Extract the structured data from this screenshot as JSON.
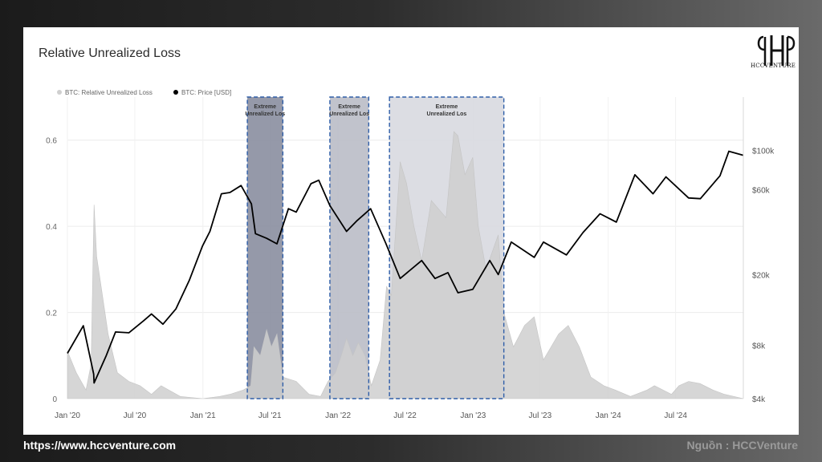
{
  "footer": {
    "url": "https://www.hccventure.com",
    "source": "Nguồn : HCCVenture"
  },
  "brand": {
    "logo_text": "HCCVENTURE"
  },
  "chart_data": {
    "type": "area",
    "title": "Relative Unrealized Loss",
    "legend": [
      {
        "name": "BTC: Relative Unrealized Loss",
        "color": "#cfcfcf"
      },
      {
        "name": "BTC: Price [USD]",
        "color": "#000000"
      }
    ],
    "legend_position": "top-left",
    "x_ticks": [
      "Jan '20",
      "Jul '20",
      "Jan '21",
      "Jul '21",
      "Jan '22",
      "Jul '22",
      "Jan '23",
      "Jul '23",
      "Jan '24",
      "Jul '24"
    ],
    "x_range": [
      "2020-01-01",
      "2024-12-31"
    ],
    "y_left": {
      "ticks": [
        0,
        0.2,
        0.4,
        0.6
      ],
      "range": [
        0,
        0.7
      ]
    },
    "y_right": {
      "ticks": [
        "$4k",
        "$8k",
        "$20k",
        "$60k",
        "$100k"
      ],
      "tick_values": [
        4000,
        8000,
        20000,
        60000,
        100000
      ],
      "scale": "log",
      "range": [
        4000,
        200000
      ]
    },
    "grid": true,
    "highlight_zones": [
      {
        "label": "Extreme Unrealized Los",
        "start": "2021-05-01",
        "end": "2021-08-05",
        "fill": "#8a8ea0"
      },
      {
        "label": "Extreme Unrealized Los",
        "start": "2021-12-10",
        "end": "2022-03-25",
        "fill": "#babcc6"
      },
      {
        "label": "Extreme Unrealized Los",
        "start": "2022-05-20",
        "end": "2023-03-25",
        "fill": "#d8d9e0"
      }
    ],
    "series": [
      {
        "name": "BTC: Relative Unrealized Loss",
        "kind": "area",
        "color": "#cfcfcf",
        "points": [
          [
            "2020-01-01",
            0.11
          ],
          [
            "2020-01-25",
            0.06
          ],
          [
            "2020-02-20",
            0.02
          ],
          [
            "2020-03-05",
            0.08
          ],
          [
            "2020-03-13",
            0.45
          ],
          [
            "2020-03-20",
            0.33
          ],
          [
            "2020-04-01",
            0.26
          ],
          [
            "2020-04-20",
            0.15
          ],
          [
            "2020-05-15",
            0.06
          ],
          [
            "2020-06-15",
            0.04
          ],
          [
            "2020-07-15",
            0.03
          ],
          [
            "2020-08-15",
            0.01
          ],
          [
            "2020-09-10",
            0.03
          ],
          [
            "2020-10-01",
            0.02
          ],
          [
            "2020-11-01",
            0.005
          ],
          [
            "2021-01-01",
            0.0
          ],
          [
            "2021-02-15",
            0.005
          ],
          [
            "2021-03-15",
            0.01
          ],
          [
            "2021-04-20",
            0.02
          ],
          [
            "2021-05-10",
            0.03
          ],
          [
            "2021-05-19",
            0.12
          ],
          [
            "2021-06-05",
            0.1
          ],
          [
            "2021-06-22",
            0.16
          ],
          [
            "2021-07-05",
            0.12
          ],
          [
            "2021-07-20",
            0.15
          ],
          [
            "2021-08-05",
            0.05
          ],
          [
            "2021-09-10",
            0.04
          ],
          [
            "2021-10-15",
            0.01
          ],
          [
            "2021-11-15",
            0.005
          ],
          [
            "2021-12-05",
            0.04
          ],
          [
            "2021-12-25",
            0.06
          ],
          [
            "2022-01-10",
            0.1
          ],
          [
            "2022-01-24",
            0.14
          ],
          [
            "2022-02-10",
            0.1
          ],
          [
            "2022-02-25",
            0.13
          ],
          [
            "2022-03-15",
            0.1
          ],
          [
            "2022-04-01",
            0.03
          ],
          [
            "2022-04-25",
            0.09
          ],
          [
            "2022-05-12",
            0.26
          ],
          [
            "2022-05-25",
            0.24
          ],
          [
            "2022-06-18",
            0.55
          ],
          [
            "2022-07-05",
            0.5
          ],
          [
            "2022-07-25",
            0.4
          ],
          [
            "2022-08-15",
            0.32
          ],
          [
            "2022-09-10",
            0.46
          ],
          [
            "2022-09-30",
            0.44
          ],
          [
            "2022-10-20",
            0.42
          ],
          [
            "2022-11-10",
            0.62
          ],
          [
            "2022-11-21",
            0.61
          ],
          [
            "2022-12-10",
            0.52
          ],
          [
            "2022-12-31",
            0.56
          ],
          [
            "2023-01-15",
            0.4
          ],
          [
            "2023-02-05",
            0.3
          ],
          [
            "2023-03-10",
            0.38
          ],
          [
            "2023-03-25",
            0.2
          ],
          [
            "2023-04-20",
            0.12
          ],
          [
            "2023-05-20",
            0.17
          ],
          [
            "2023-06-15",
            0.19
          ],
          [
            "2023-07-10",
            0.09
          ],
          [
            "2023-08-20",
            0.15
          ],
          [
            "2023-09-15",
            0.17
          ],
          [
            "2023-10-15",
            0.12
          ],
          [
            "2023-11-15",
            0.05
          ],
          [
            "2023-12-20",
            0.03
          ],
          [
            "2024-01-20",
            0.02
          ],
          [
            "2024-03-01",
            0.005
          ],
          [
            "2024-04-15",
            0.02
          ],
          [
            "2024-05-05",
            0.03
          ],
          [
            "2024-06-20",
            0.01
          ],
          [
            "2024-07-10",
            0.03
          ],
          [
            "2024-08-05",
            0.04
          ],
          [
            "2024-09-05",
            0.035
          ],
          [
            "2024-10-10",
            0.02
          ],
          [
            "2024-11-10",
            0.01
          ],
          [
            "2024-12-31",
            0.0
          ]
        ]
      },
      {
        "name": "BTC: Price [USD]",
        "kind": "line",
        "axis": "right",
        "color": "#000000",
        "points": [
          [
            "2020-01-01",
            7200
          ],
          [
            "2020-02-13",
            10300
          ],
          [
            "2020-03-12",
            5500
          ],
          [
            "2020-03-13",
            4900
          ],
          [
            "2020-04-15",
            7000
          ],
          [
            "2020-05-10",
            9500
          ],
          [
            "2020-06-15",
            9400
          ],
          [
            "2020-07-25",
            11000
          ],
          [
            "2020-08-15",
            12000
          ],
          [
            "2020-09-15",
            10500
          ],
          [
            "2020-10-20",
            12800
          ],
          [
            "2020-11-25",
            18500
          ],
          [
            "2020-12-31",
            29000
          ],
          [
            "2021-01-20",
            35000
          ],
          [
            "2021-02-20",
            57000
          ],
          [
            "2021-03-15",
            58000
          ],
          [
            "2021-04-14",
            63500
          ],
          [
            "2021-05-12",
            50000
          ],
          [
            "2021-05-23",
            34000
          ],
          [
            "2021-06-22",
            32000
          ],
          [
            "2021-07-20",
            29800
          ],
          [
            "2021-08-20",
            47000
          ],
          [
            "2021-09-10",
            45000
          ],
          [
            "2021-10-20",
            65000
          ],
          [
            "2021-11-10",
            68000
          ],
          [
            "2021-12-10",
            49000
          ],
          [
            "2022-01-24",
            35000
          ],
          [
            "2022-02-20",
            40000
          ],
          [
            "2022-03-30",
            47000
          ],
          [
            "2022-05-10",
            30000
          ],
          [
            "2022-06-18",
            19000
          ],
          [
            "2022-08-15",
            24000
          ],
          [
            "2022-09-20",
            19000
          ],
          [
            "2022-10-25",
            20500
          ],
          [
            "2022-11-21",
            15800
          ],
          [
            "2022-12-31",
            16500
          ],
          [
            "2023-02-15",
            24000
          ],
          [
            "2023-03-10",
            20000
          ],
          [
            "2023-04-14",
            30500
          ],
          [
            "2023-06-15",
            25000
          ],
          [
            "2023-07-10",
            30500
          ],
          [
            "2023-09-10",
            25800
          ],
          [
            "2023-10-25",
            34500
          ],
          [
            "2023-12-10",
            44000
          ],
          [
            "2024-01-23",
            39500
          ],
          [
            "2024-03-13",
            73000
          ],
          [
            "2024-05-01",
            57000
          ],
          [
            "2024-06-05",
            71000
          ],
          [
            "2024-08-05",
            54000
          ],
          [
            "2024-09-06",
            53500
          ],
          [
            "2024-10-29",
            72000
          ],
          [
            "2024-11-22",
            99000
          ],
          [
            "2024-12-31",
            94000
          ]
        ]
      }
    ]
  }
}
